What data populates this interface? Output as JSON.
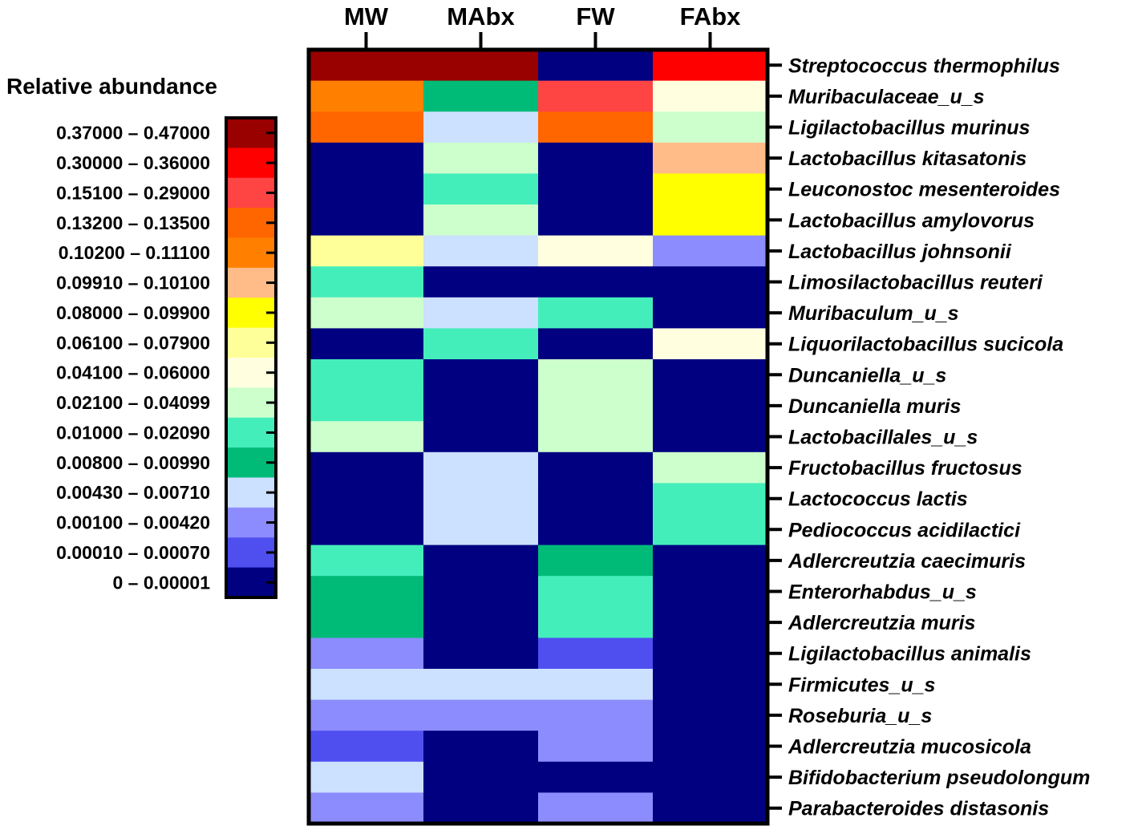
{
  "chart_data": {
    "type": "heatmap",
    "title": "",
    "legend_title": "Relative abundance",
    "columns": [
      "MW",
      "MAbx",
      "FW",
      "FAbx"
    ],
    "rows": [
      "Streptococcus thermophilus",
      "Muribaculaceae_u_s",
      "Ligilactobacillus murinus",
      "Lactobacillus kitasatonis",
      "Leuconostoc mesenteroides",
      "Lactobacillus amylovorus",
      "Lactobacillus johnsonii",
      "Limosilactobacillus reuteri",
      "Muribaculum_u_s",
      "Liquorilactobacillus sucicola",
      "Duncaniella_u_s",
      "Duncaniella muris",
      "Lactobacillales_u_s",
      "Fructobacillus fructosus",
      "Lactococcus lactis",
      "Pediococcus acidilactici",
      "Adlercreutzia caecimuris",
      "Enterorhabdus_u_s",
      "Adlercreutzia muris",
      "Ligilactobacillus animalis",
      "Firmicutes_u_s",
      "Roseburia_u_s",
      "Adlercreutzia mucosicola",
      "Bifidobacterium pseudolongum",
      "Parabacteroides distasonis"
    ],
    "legend_bins": [
      {
        "label": "0.37000 – 0.47000",
        "color": "#990000"
      },
      {
        "label": "0.30000 – 0.36000",
        "color": "#ff0000"
      },
      {
        "label": "0.15100 – 0.29000",
        "color": "#ff4444"
      },
      {
        "label": "0.13200 – 0.13500",
        "color": "#ff6600"
      },
      {
        "label": "0.10200 – 0.11100",
        "color": "#ff8000"
      },
      {
        "label": "0.09910 – 0.10100",
        "color": "#ffbb88"
      },
      {
        "label": "0.08000 – 0.09900",
        "color": "#ffff00"
      },
      {
        "label": "0.06100 – 0.07900",
        "color": "#ffff99"
      },
      {
        "label": "0.04100 – 0.06000",
        "color": "#ffffe0"
      },
      {
        "label": "0.02100 – 0.04099",
        "color": "#ccffcc"
      },
      {
        "label": "0.01000 – 0.02090",
        "color": "#44eebb"
      },
      {
        "label": "0.00800 – 0.00990",
        "color": "#00bb77"
      },
      {
        "label": "0.00430 – 0.00710",
        "color": "#cce0ff"
      },
      {
        "label": "0.00100 – 0.00420",
        "color": "#8c8cff"
      },
      {
        "label": "0.00010 – 0.00070",
        "color": "#4f4ff0"
      },
      {
        "label": "0 – 0.00001",
        "color": "#000080"
      }
    ],
    "cell_bins": [
      [
        0,
        0,
        15,
        1
      ],
      [
        4,
        11,
        2,
        8
      ],
      [
        3,
        12,
        3,
        9
      ],
      [
        15,
        9,
        15,
        5
      ],
      [
        15,
        10,
        15,
        6
      ],
      [
        15,
        9,
        15,
        6
      ],
      [
        7,
        12,
        8,
        13
      ],
      [
        10,
        15,
        15,
        15
      ],
      [
        9,
        12,
        10,
        15
      ],
      [
        15,
        10,
        15,
        8
      ],
      [
        10,
        15,
        9,
        15
      ],
      [
        10,
        15,
        9,
        15
      ],
      [
        9,
        15,
        9,
        15
      ],
      [
        15,
        12,
        15,
        9
      ],
      [
        15,
        12,
        15,
        10
      ],
      [
        15,
        12,
        15,
        10
      ],
      [
        10,
        15,
        11,
        15
      ],
      [
        11,
        15,
        10,
        15
      ],
      [
        11,
        15,
        10,
        15
      ],
      [
        13,
        15,
        14,
        15
      ],
      [
        12,
        12,
        12,
        15
      ],
      [
        13,
        13,
        13,
        15
      ],
      [
        14,
        15,
        13,
        15
      ],
      [
        12,
        15,
        15,
        15
      ],
      [
        13,
        15,
        13,
        15
      ]
    ]
  }
}
